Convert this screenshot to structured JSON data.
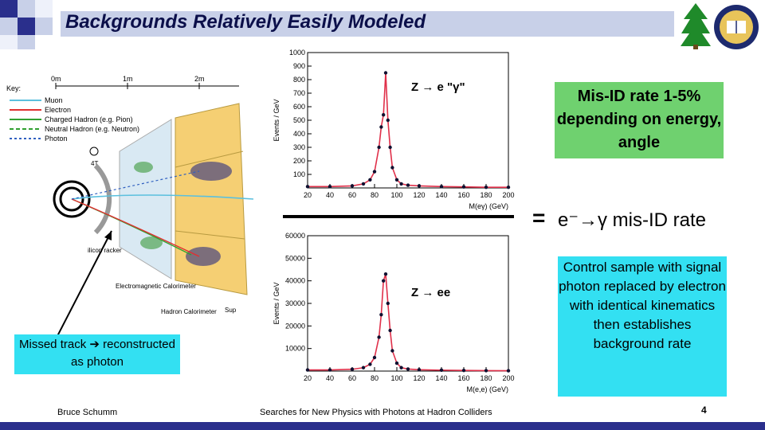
{
  "slide": {
    "title": "Backgrounds Relatively Easily Modeled",
    "page_number": "4",
    "footer_author": "Bruce Schumm",
    "footer_talk": "Searches for New Physics with Photons at Hadron Colliders"
  },
  "detector": {
    "key_title": "Key:",
    "scale": [
      "0m",
      "1m",
      "2m"
    ],
    "legend": [
      {
        "label": "Muon",
        "color": "#5bc0de"
      },
      {
        "label": "Electron",
        "color": "#e03030"
      },
      {
        "label": "Charged Hadron (e.g. Pion)",
        "color": "#30a030"
      },
      {
        "label": "Neutral Hadron (e.g. Neutron)",
        "color": "#30a030"
      },
      {
        "label": "Photon",
        "color": "#3060c0"
      }
    ],
    "field_label": "4T",
    "labels": {
      "tracker": "ilicon\nracker",
      "em_cal": "Electromagnetic\nCalorimeter",
      "hadron_cal": "Hadron\nCalorimeter",
      "sup": "Sup"
    }
  },
  "plot_top": {
    "label": "Z → e \"γ\"",
    "ylabel": "Events / GeV",
    "xlabel": "M(eγ) (GeV)",
    "chart_data": {
      "type": "line",
      "title": "Z → e \"γ\"",
      "xlabel": "M(eγ) (GeV)",
      "ylabel": "Events / GeV",
      "xlim": [
        20,
        200
      ],
      "ylim": [
        0,
        1000
      ],
      "xticks": [
        20,
        40,
        60,
        80,
        100,
        120,
        140,
        160,
        180,
        200
      ],
      "yticks": [
        100,
        200,
        300,
        400,
        500,
        600,
        700,
        800,
        900,
        1000
      ],
      "x": [
        20,
        40,
        60,
        70,
        76,
        80,
        84,
        86,
        88,
        90,
        92,
        94,
        96,
        100,
        104,
        110,
        120,
        140,
        160,
        180,
        200
      ],
      "y": [
        10,
        10,
        15,
        30,
        60,
        120,
        300,
        450,
        540,
        850,
        500,
        300,
        150,
        60,
        30,
        20,
        15,
        10,
        8,
        5,
        5
      ]
    }
  },
  "plot_bottom": {
    "label": "Z → ee",
    "ylabel": "Events / GeV",
    "xlabel": "M(e,e) (GeV)",
    "chart_data": {
      "type": "line",
      "title": "Z → ee",
      "xlabel": "M(e,e) (GeV)",
      "ylabel": "Events / GeV",
      "xlim": [
        20,
        200
      ],
      "ylim": [
        0,
        60000
      ],
      "xticks": [
        20,
        40,
        60,
        80,
        100,
        120,
        140,
        160,
        180,
        200
      ],
      "yticks": [
        10000,
        20000,
        30000,
        40000,
        50000,
        60000
      ],
      "x": [
        20,
        40,
        60,
        70,
        76,
        80,
        84,
        86,
        88,
        90,
        92,
        94,
        96,
        100,
        104,
        110,
        120,
        140,
        160,
        180,
        200
      ],
      "y": [
        500,
        500,
        800,
        1500,
        3000,
        6000,
        15000,
        25000,
        40000,
        43000,
        30000,
        18000,
        9000,
        3500,
        1500,
        900,
        600,
        400,
        300,
        200,
        150
      ]
    }
  },
  "fraction": {
    "equals": "=",
    "result": "e⁻→γ mis-ID rate"
  },
  "misid_box": "Mis-ID rate 1-5% depending on energy, angle",
  "control_box": "Control sample with signal photon replaced by electron with identical kinematics then establishes background rate",
  "missed_track": "Missed track ➔ reconstructed as photon",
  "colors": {
    "title_text": "#0b0f4a",
    "green_box": "#6fd16f",
    "cyan_box": "#33e0f2",
    "bar": "#2a2f8c",
    "fit": "#e0304a",
    "points": "#101030",
    "calorimeter": "#f5cf73"
  }
}
